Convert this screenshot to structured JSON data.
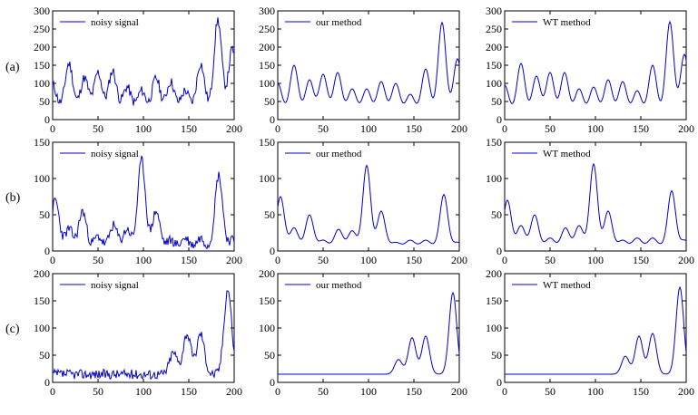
{
  "row_labels": [
    "(a)",
    "(b)",
    "(c)"
  ],
  "line_color": "#0000cc",
  "chart_data": [
    {
      "type": "line",
      "row": 0,
      "col": 0,
      "legend": "noisy signal",
      "xlim": [
        0,
        200
      ],
      "ylim": [
        0,
        300
      ],
      "xticks": [
        0,
        50,
        100,
        150,
        200
      ],
      "yticks": [
        0,
        50,
        100,
        150,
        200,
        250,
        300
      ],
      "peaks": [
        [
          0,
          95
        ],
        [
          18,
          155
        ],
        [
          35,
          115
        ],
        [
          50,
          130
        ],
        [
          66,
          135
        ],
        [
          82,
          90
        ],
        [
          98,
          80
        ],
        [
          114,
          115
        ],
        [
          130,
          105
        ],
        [
          146,
          80
        ],
        [
          163,
          155
        ],
        [
          182,
          275
        ],
        [
          198,
          195
        ]
      ],
      "base": 30,
      "noisy": true,
      "seed": 11
    },
    {
      "type": "line",
      "row": 0,
      "col": 1,
      "legend": "our method",
      "xlim": [
        0,
        200
      ],
      "ylim": [
        0,
        300
      ],
      "xticks": [
        0,
        50,
        100,
        150,
        200
      ],
      "yticks": [
        0,
        50,
        100,
        150,
        200,
        250,
        300
      ],
      "peaks": [
        [
          0,
          100
        ],
        [
          18,
          150
        ],
        [
          35,
          110
        ],
        [
          50,
          125
        ],
        [
          66,
          130
        ],
        [
          82,
          85
        ],
        [
          98,
          85
        ],
        [
          114,
          105
        ],
        [
          130,
          100
        ],
        [
          146,
          70
        ],
        [
          163,
          140
        ],
        [
          181,
          268
        ],
        [
          198,
          168
        ]
      ],
      "base": 28,
      "noisy": false,
      "seed": 0
    },
    {
      "type": "line",
      "row": 0,
      "col": 2,
      "legend": "WT method",
      "xlim": [
        0,
        200
      ],
      "ylim": [
        0,
        300
      ],
      "xticks": [
        0,
        50,
        100,
        150,
        200
      ],
      "yticks": [
        0,
        50,
        100,
        150,
        200,
        250,
        300
      ],
      "peaks": [
        [
          0,
          95
        ],
        [
          18,
          155
        ],
        [
          35,
          120
        ],
        [
          50,
          130
        ],
        [
          66,
          130
        ],
        [
          82,
          85
        ],
        [
          98,
          90
        ],
        [
          114,
          110
        ],
        [
          130,
          105
        ],
        [
          146,
          80
        ],
        [
          163,
          150
        ],
        [
          182,
          270
        ],
        [
          198,
          180
        ]
      ],
      "base": 25,
      "noisy": false,
      "seed": 0
    },
    {
      "type": "line",
      "row": 1,
      "col": 0,
      "legend": "noisy signal",
      "xlim": [
        0,
        200
      ],
      "ylim": [
        0,
        150
      ],
      "xticks": [
        0,
        50,
        100,
        150,
        200
      ],
      "yticks": [
        0,
        50,
        100,
        150
      ],
      "peaks": [
        [
          3,
          70
        ],
        [
          18,
          30
        ],
        [
          33,
          55
        ],
        [
          50,
          20
        ],
        [
          67,
          35
        ],
        [
          82,
          30
        ],
        [
          98,
          125
        ],
        [
          114,
          55
        ],
        [
          130,
          15
        ],
        [
          146,
          18
        ],
        [
          163,
          18
        ],
        [
          183,
          105
        ],
        [
          198,
          15
        ]
      ],
      "base": 5,
      "noisy": true,
      "seed": 23
    },
    {
      "type": "line",
      "row": 1,
      "col": 1,
      "legend": "our method",
      "xlim": [
        0,
        200
      ],
      "ylim": [
        0,
        150
      ],
      "xticks": [
        0,
        50,
        100,
        150,
        200
      ],
      "yticks": [
        0,
        50,
        100,
        150
      ],
      "peaks": [
        [
          3,
          75
        ],
        [
          18,
          32
        ],
        [
          35,
          50
        ],
        [
          50,
          15
        ],
        [
          67,
          30
        ],
        [
          82,
          28
        ],
        [
          98,
          118
        ],
        [
          114,
          55
        ],
        [
          130,
          12
        ],
        [
          146,
          15
        ],
        [
          163,
          15
        ],
        [
          183,
          78
        ],
        [
          198,
          12
        ]
      ],
      "base": 8,
      "noisy": false,
      "seed": 0
    },
    {
      "type": "line",
      "row": 1,
      "col": 2,
      "legend": "WT method",
      "xlim": [
        0,
        200
      ],
      "ylim": [
        0,
        150
      ],
      "xticks": [
        0,
        50,
        100,
        150,
        200
      ],
      "yticks": [
        0,
        50,
        100,
        150
      ],
      "peaks": [
        [
          3,
          70
        ],
        [
          18,
          35
        ],
        [
          33,
          50
        ],
        [
          50,
          18
        ],
        [
          67,
          32
        ],
        [
          82,
          35
        ],
        [
          98,
          120
        ],
        [
          114,
          55
        ],
        [
          130,
          15
        ],
        [
          146,
          18
        ],
        [
          163,
          18
        ],
        [
          184,
          83
        ],
        [
          198,
          15
        ]
      ],
      "base": 8,
      "noisy": false,
      "seed": 0
    },
    {
      "type": "line",
      "row": 2,
      "col": 0,
      "legend": "noisy signal",
      "xlim": [
        0,
        200
      ],
      "ylim": [
        0,
        200
      ],
      "xticks": [
        0,
        50,
        100,
        150,
        200
      ],
      "yticks": [
        0,
        50,
        100,
        150,
        200
      ],
      "peaks": [
        [
          133,
          55
        ],
        [
          148,
          90
        ],
        [
          163,
          90
        ],
        [
          193,
          172
        ]
      ],
      "base": 15,
      "noisy": true,
      "seed": 37
    },
    {
      "type": "line",
      "row": 2,
      "col": 1,
      "legend": "our method",
      "xlim": [
        0,
        200
      ],
      "ylim": [
        0,
        200
      ],
      "xticks": [
        0,
        50,
        100,
        150,
        200
      ],
      "yticks": [
        0,
        50,
        100,
        150,
        200
      ],
      "peaks": [
        [
          133,
          42
        ],
        [
          148,
          82
        ],
        [
          163,
          85
        ],
        [
          193,
          165
        ]
      ],
      "base": 15,
      "noisy": false,
      "seed": 0
    },
    {
      "type": "line",
      "row": 2,
      "col": 2,
      "legend": "WT method",
      "xlim": [
        0,
        200
      ],
      "ylim": [
        0,
        200
      ],
      "xticks": [
        0,
        50,
        100,
        150,
        200
      ],
      "yticks": [
        0,
        50,
        100,
        150,
        200
      ],
      "peaks": [
        [
          133,
          48
        ],
        [
          148,
          85
        ],
        [
          163,
          90
        ],
        [
          193,
          175
        ]
      ],
      "base": 15,
      "noisy": false,
      "seed": 0
    }
  ]
}
